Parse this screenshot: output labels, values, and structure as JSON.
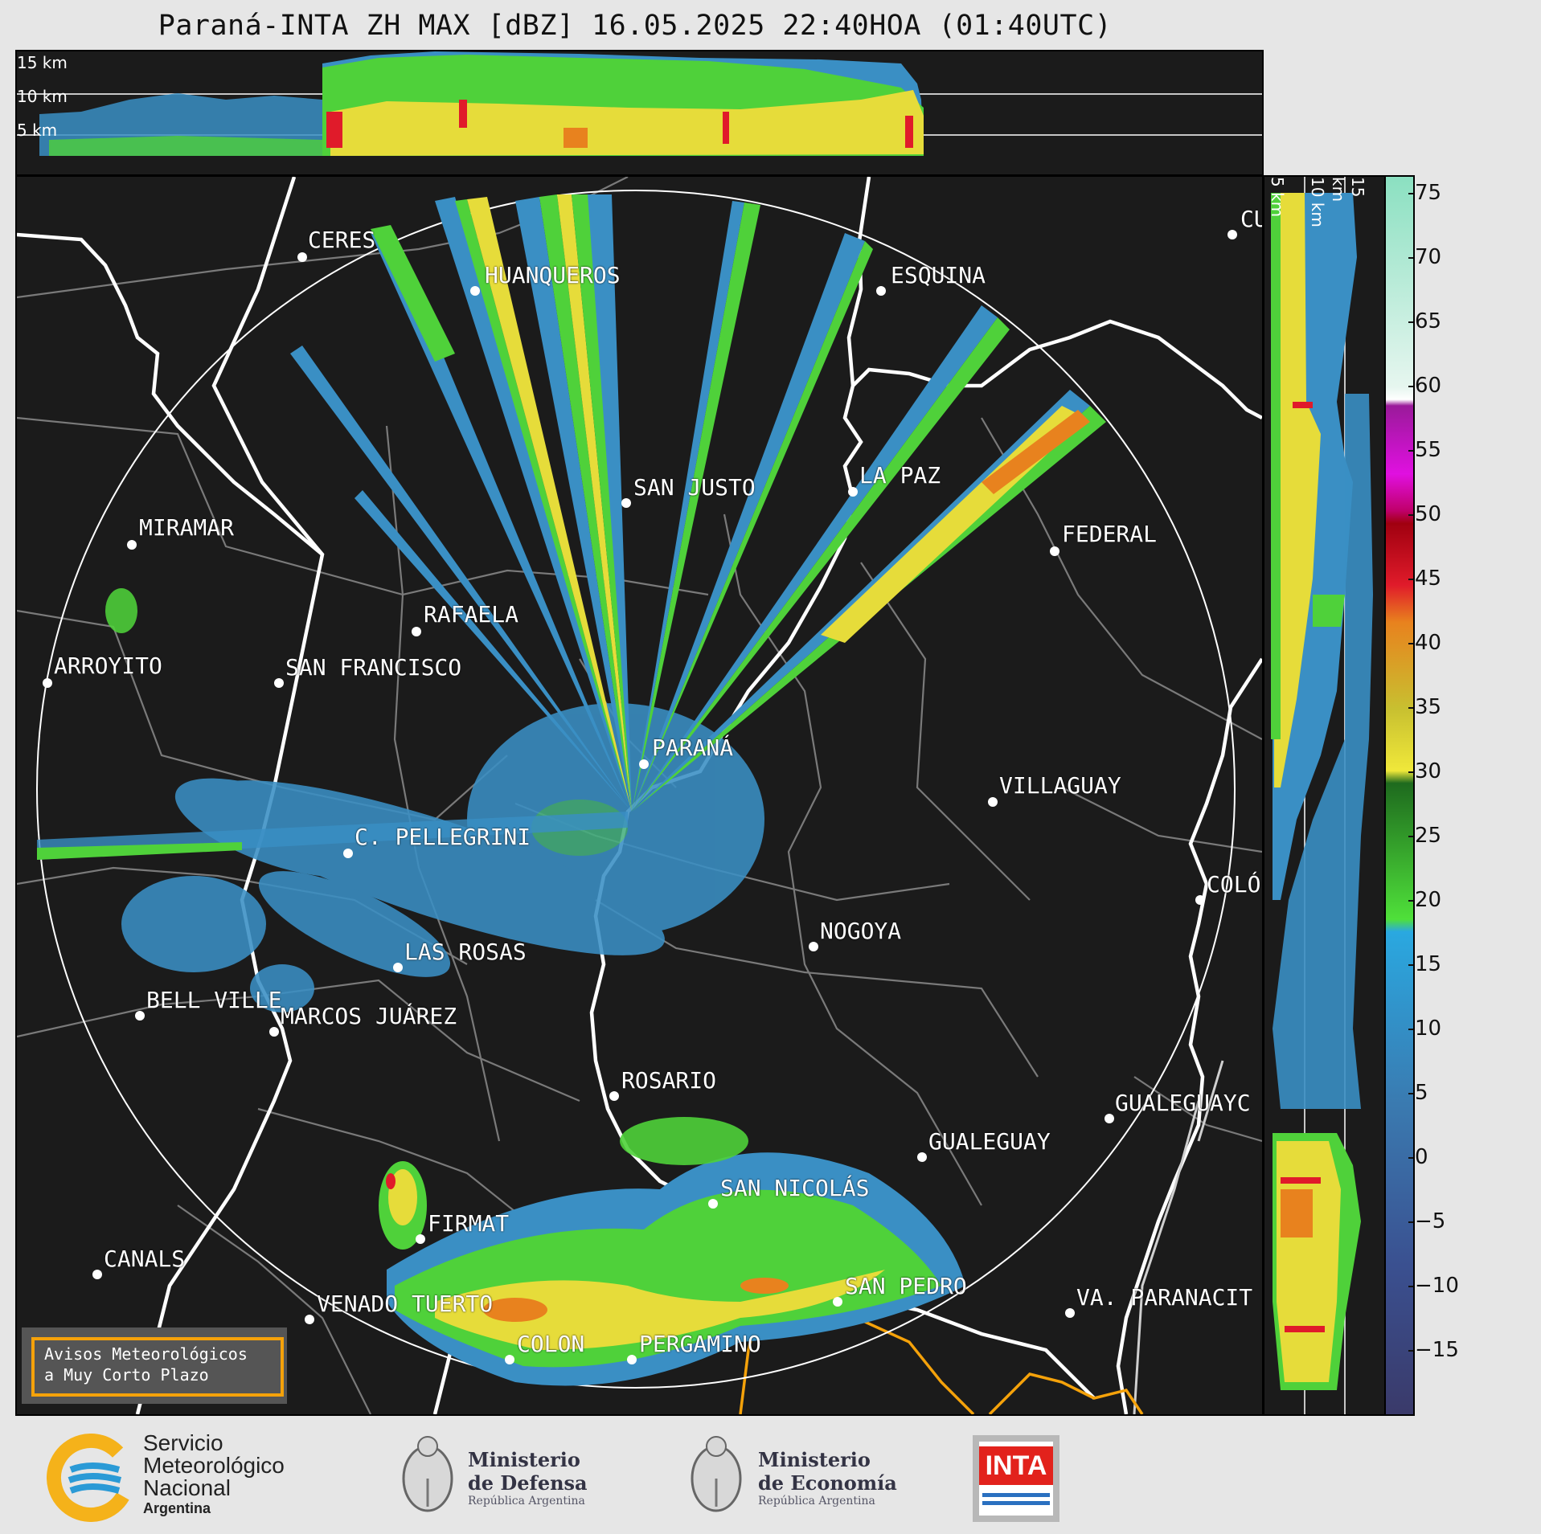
{
  "title": "Paraná-INTA ZH MAX [dBZ] 16.05.2025 22:40HOA (01:40UTC)",
  "top_panel": {
    "alt_labels": [
      "15 km",
      "10 km",
      "5 km"
    ]
  },
  "right_panel": {
    "alt_labels": [
      "5 km",
      "10 km",
      "15 km"
    ]
  },
  "colorbar": {
    "ticks": [
      "75",
      "70",
      "65",
      "60",
      "55",
      "50",
      "45",
      "40",
      "35",
      "30",
      "25",
      "20",
      "15",
      "10",
      "5",
      "0",
      "−5",
      "−10",
      "−15"
    ]
  },
  "cities": [
    {
      "name": "CERES"
    },
    {
      "name": "HUANQUEROS"
    },
    {
      "name": "ESQUINA"
    },
    {
      "name": "CU"
    },
    {
      "name": "SAN JUSTO"
    },
    {
      "name": "LA PAZ"
    },
    {
      "name": "MIRAMAR"
    },
    {
      "name": "FEDERAL"
    },
    {
      "name": "RAFAELA"
    },
    {
      "name": "ARROYITO"
    },
    {
      "name": "SAN FRANCISCO"
    },
    {
      "name": "PARANÁ"
    },
    {
      "name": "VILLAGUAY"
    },
    {
      "name": "C. PELLEGRINI"
    },
    {
      "name": "COLÓ"
    },
    {
      "name": "NOGOYA"
    },
    {
      "name": "LAS ROSAS"
    },
    {
      "name": "BELL VILLE"
    },
    {
      "name": "MARCOS JUÁREZ"
    },
    {
      "name": "ROSARIO"
    },
    {
      "name": "GUALEGUAYC"
    },
    {
      "name": "GUALEGUAY"
    },
    {
      "name": "SAN NICOLÁS"
    },
    {
      "name": "FIRMAT"
    },
    {
      "name": "CANALS"
    },
    {
      "name": "SAN PEDRO"
    },
    {
      "name": "VENADO TUERTO"
    },
    {
      "name": "VA. PARANACIT"
    },
    {
      "name": "COLON"
    },
    {
      "name": "PERGAMINO"
    }
  ],
  "notice": {
    "line1": "Avisos Meteorológicos",
    "line2": "a Muy Corto Plazo"
  },
  "footer": {
    "smn": {
      "line1": "Servicio",
      "line2": "Meteorológico",
      "line3": "Nacional",
      "line4": "Argentina"
    },
    "defensa": {
      "line1": "Ministerio",
      "line2": "de Defensa",
      "line3": "República Argentina"
    },
    "economia": {
      "line1": "Ministerio",
      "line2": "de Economía",
      "line3": "República Argentina"
    },
    "inta": {
      "label": "INTA"
    }
  },
  "colors": {
    "map_bg": "#1b1b1b",
    "weak_echo": "#3a8fc4",
    "moderate_echo": "#4fd13a",
    "strong_echo": "#e6dc3a",
    "heavy_echo": "#e8821e",
    "extreme_echo": "#e01b2a",
    "border_white": "#ffffff",
    "border_gray": "#7a7a7a",
    "route_orange": "#f5a20a"
  }
}
